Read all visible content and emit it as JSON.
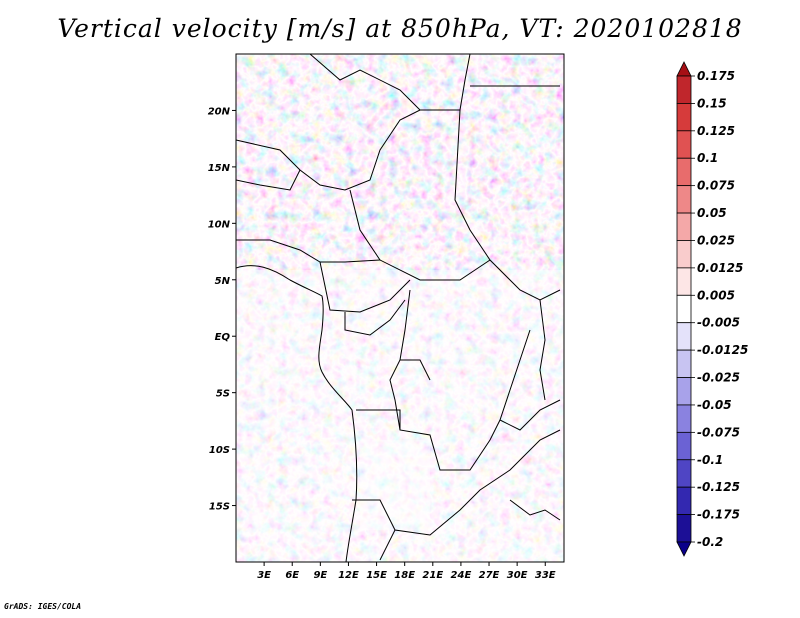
{
  "title": "Vertical velocity [m/s] at 850hPa, VT: 2020102818",
  "footer": "GrADS: IGES/COLA",
  "map": {
    "lat_range": [
      -20,
      25
    ],
    "lon_range": [
      0,
      35
    ],
    "lat_ticks": [
      "20N",
      "15N",
      "10N",
      "5N",
      "EQ",
      "5S",
      "10S",
      "15S"
    ],
    "lon_ticks": [
      "3E",
      "6E",
      "9E",
      "12E",
      "15E",
      "18E",
      "21E",
      "24E",
      "27E",
      "30E",
      "33E"
    ]
  },
  "colorbar": {
    "levels": [
      "0.175",
      "0.15",
      "0.125",
      "0.1",
      "0.075",
      "0.05",
      "0.025",
      "0.0125",
      "0.005",
      "-0.005",
      "-0.0125",
      "-0.025",
      "-0.05",
      "-0.075",
      "-0.1",
      "-0.125",
      "-0.175",
      "-0.2"
    ],
    "colors": [
      "#a50f15",
      "#c0262c",
      "#d63b3b",
      "#e05252",
      "#e86c6c",
      "#ee8888",
      "#f4a8a8",
      "#f9cccc",
      "#fde6e6",
      "#ffffff",
      "#e4e2fa",
      "#c8c4f2",
      "#a8a2ea",
      "#8a82e0",
      "#6b62d4",
      "#4f45c4",
      "#3328b0",
      "#1c0f96",
      "#0a008a"
    ]
  }
}
